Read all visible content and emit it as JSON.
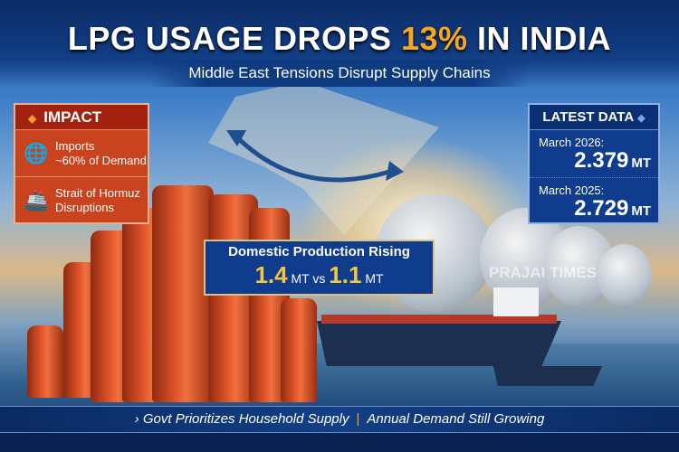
{
  "title": {
    "pre": "LPG USAGE DROPS ",
    "highlight": "13%",
    "post": " IN INDIA"
  },
  "subtitle": "Middle East Tensions Disrupt Supply Chains",
  "impact": {
    "heading": "IMPACT",
    "items": [
      {
        "icon": "globe-down-arrow-icon",
        "line1": "Imports",
        "line2": "~60% of Demand"
      },
      {
        "icon": "ship-waves-icon",
        "line1": "Strait of Hormuz",
        "line2": "Disruptions"
      }
    ]
  },
  "latest": {
    "heading": "LATEST DATA",
    "entries": [
      {
        "label": "March 2026:",
        "value": "2.379",
        "unit": "MT"
      },
      {
        "label": "March 2025:",
        "value": "2.729",
        "unit": "MT"
      }
    ]
  },
  "domestic": {
    "heading": "Domestic Production Rising",
    "a": "1.4",
    "unit_a": "MT",
    "vs": "vs",
    "b": "1.1",
    "unit_b": "MT"
  },
  "watermark": "PRAJAI TIMES",
  "footer": {
    "left": "Govt Prioritizes Household Supply",
    "right": "Annual Demand Still Growing"
  },
  "colors": {
    "accent": "#f5a623",
    "impact_red": "#c8431e",
    "data_blue": "#0f3c8c"
  }
}
